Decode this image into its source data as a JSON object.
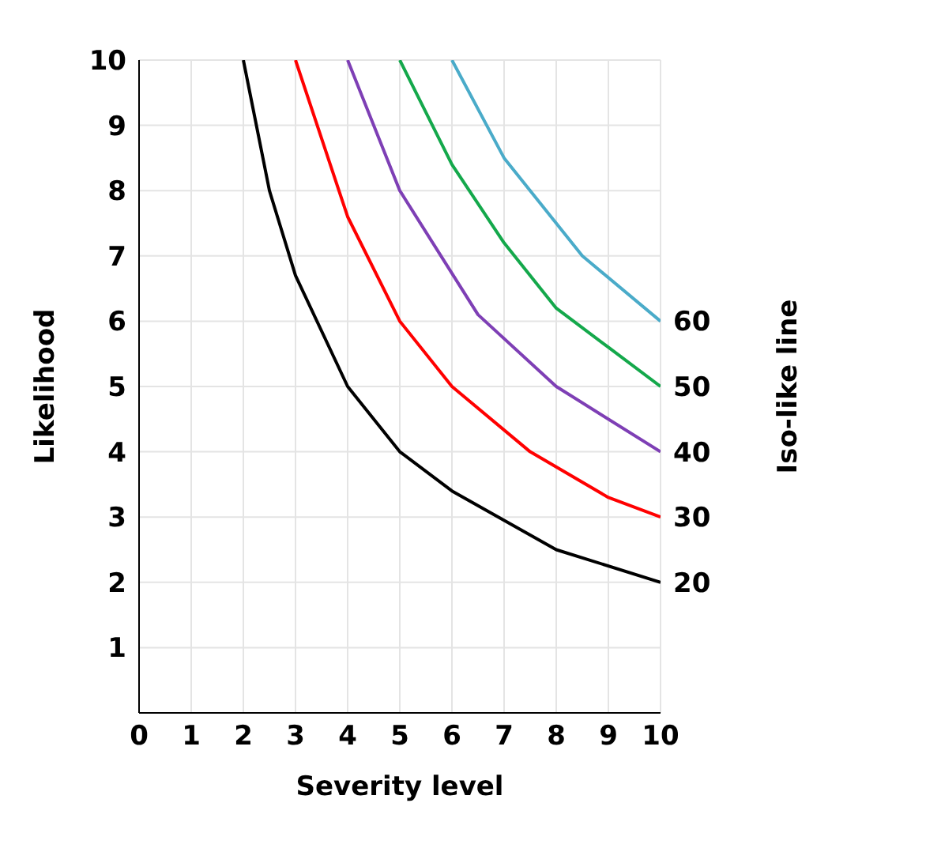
{
  "chart_data": {
    "type": "line",
    "xlabel": "Severity level",
    "ylabel": "Likelihood",
    "y2label": "Iso-like line",
    "xlim": [
      0,
      10
    ],
    "ylim": [
      0,
      10
    ],
    "xticks": [
      0,
      1,
      2,
      3,
      4,
      5,
      6,
      7,
      8,
      9,
      10
    ],
    "yticks": [
      1,
      2,
      3,
      4,
      5,
      6,
      7,
      8,
      9,
      10
    ],
    "grid": true,
    "legend": false,
    "marker": "none",
    "line_style": "solid",
    "series": [
      {
        "name": "20",
        "color": "#000000",
        "x": [
          2,
          2.5,
          3,
          4,
          5,
          6,
          8,
          10
        ],
        "values": [
          10,
          8,
          6.7,
          5,
          4,
          3.4,
          2.5,
          2
        ]
      },
      {
        "name": "30",
        "color": "#ff0000",
        "x": [
          3,
          4,
          5,
          6,
          7.5,
          9,
          10
        ],
        "values": [
          10,
          7.6,
          6,
          5,
          4,
          3.3,
          3
        ]
      },
      {
        "name": "40",
        "color": "#7e3fb5",
        "x": [
          4,
          5,
          6.5,
          8,
          10
        ],
        "values": [
          10,
          8,
          6.1,
          5,
          4
        ]
      },
      {
        "name": "50",
        "color": "#14a84b",
        "x": [
          5,
          6,
          7,
          8,
          9,
          10
        ],
        "values": [
          10,
          8.4,
          7.2,
          6.2,
          5.6,
          5
        ]
      },
      {
        "name": "60",
        "color": "#4aabc9",
        "x": [
          6,
          7,
          8.5,
          10
        ],
        "values": [
          10,
          8.5,
          7,
          6
        ]
      }
    ]
  }
}
